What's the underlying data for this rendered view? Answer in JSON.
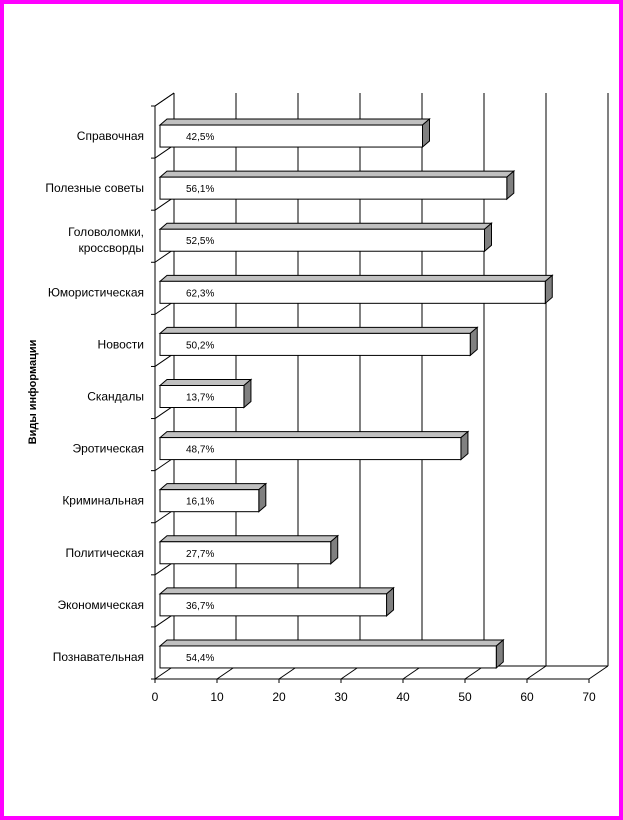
{
  "chart_data": {
    "type": "bar",
    "orientation": "horizontal",
    "ylabel": "Виды информации",
    "xlim": [
      0,
      70
    ],
    "xticks": [
      0,
      10,
      20,
      30,
      40,
      50,
      60,
      70
    ],
    "grid": true,
    "categories": [
      [
        "Справочная"
      ],
      [
        "Полезные советы"
      ],
      [
        "Головоломки,",
        "кроссворды"
      ],
      [
        "Юмористическая"
      ],
      [
        "Новости"
      ],
      [
        "Скандалы"
      ],
      [
        "Эротическая"
      ],
      [
        "Криминальная"
      ],
      [
        "Политическая"
      ],
      [
        "Экономическая"
      ],
      [
        "Познавательная"
      ]
    ],
    "values": [
      42.5,
      56.1,
      52.5,
      62.3,
      50.2,
      13.7,
      48.7,
      16.1,
      27.7,
      36.7,
      54.4
    ],
    "value_labels": [
      "42,5%",
      "56,1%",
      "52,5%",
      "62,3%",
      "50,2%",
      "13,7%",
      "48,7%",
      "16,1%",
      "27,7%",
      "36,7%",
      "54,4%"
    ],
    "colors": {
      "bar_face": "#ffffff",
      "bar_top": "#c0c0c0",
      "bar_side": "#808080",
      "border": "#ff00ff"
    }
  }
}
